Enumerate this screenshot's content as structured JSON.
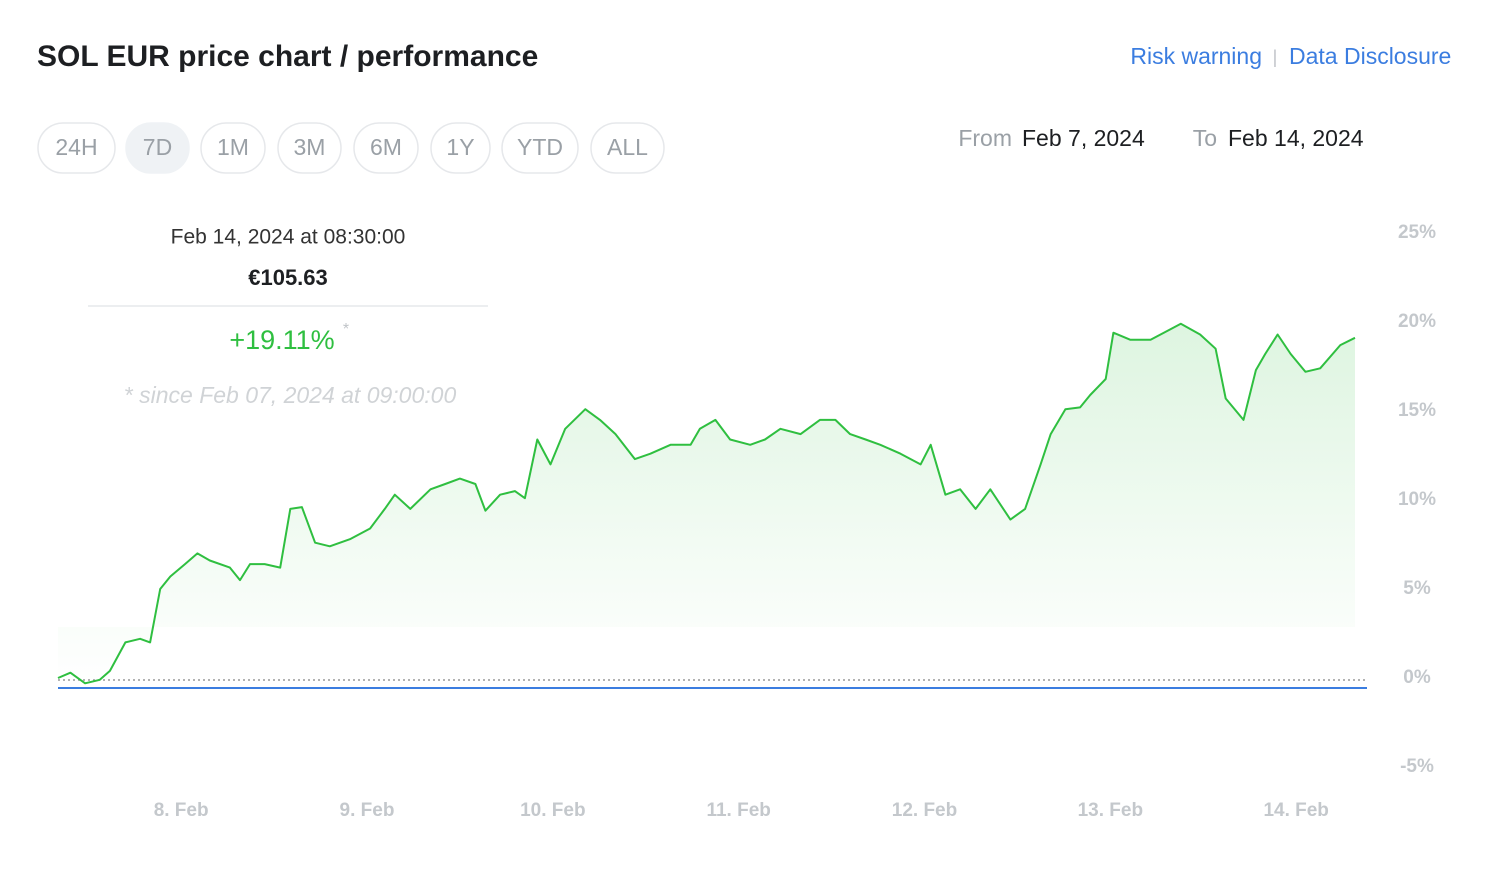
{
  "header": {
    "title": "SOL EUR price chart / performance",
    "links": [
      "Risk warning",
      "Data Disclosure"
    ]
  },
  "ranges": {
    "options": [
      "24H",
      "7D",
      "1M",
      "3M",
      "6M",
      "1Y",
      "YTD",
      "ALL"
    ],
    "selected": "7D"
  },
  "period": {
    "from_label": "From",
    "from": "Feb 7, 2024",
    "to_label": "To",
    "to": "Feb 14, 2024"
  },
  "tooltip": {
    "time": "Feb 14, 2024 at 08:30:00",
    "price": "€105.63",
    "change": "+19.11%",
    "mark": "*",
    "note": "* since Feb 07, 2024 at 09:00:00"
  },
  "chart_data": {
    "type": "line",
    "x": [
      0,
      1.6,
      3.5,
      5.4,
      6.7,
      8.7,
      10.6,
      11.9,
      13.2,
      14.5,
      16.4,
      18.0,
      19.6,
      22.2,
      23.5,
      24.8,
      26.7,
      28.7,
      30.0,
      31.5,
      33.2,
      35.1,
      37.7,
      40.3,
      42.2,
      43.5,
      45.5,
      48.1,
      50.0,
      51.9,
      53.9,
      55.2,
      57.1,
      59.0,
      60.3,
      61.9,
      63.6,
      65.5,
      68.1,
      70.0,
      72.0,
      74.5,
      76.5,
      79.1,
      81.7,
      82.9,
      84.9,
      86.8,
      89.4,
      91.3,
      93.3,
      95.9,
      98.4,
      100.4,
      102.3,
      104.3,
      106.2,
      108.8,
      111.4,
      112.7,
      114.6,
      116.5,
      118.5,
      120.4,
      123.0,
      124.9,
      126.9,
      128.2,
      130.1,
      132.0,
      133.3,
      135.3,
      136.3,
      138.5,
      141.1,
      143.7,
      145.0,
      147.5,
      149.5,
      150.8,
      153.1,
      154.7,
      155.9,
      157.5,
      159.2,
      161.1,
      163.0,
      165.6,
      167.5
    ],
    "series": [
      {
        "name": "SOL EUR",
        "color": "#2fbf40",
        "values": [
          0,
          0.3,
          -0.3,
          -0.1,
          0.4,
          2.0,
          2.2,
          2.0,
          5.0,
          5.7,
          6.4,
          7.0,
          6.6,
          6.2,
          5.5,
          6.4,
          6.4,
          6.2,
          9.5,
          9.6,
          7.6,
          7.4,
          7.8,
          8.4,
          9.5,
          10.3,
          9.5,
          10.6,
          10.9,
          11.2,
          10.9,
          9.4,
          10.3,
          10.5,
          10.1,
          13.4,
          12.0,
          14.0,
          15.1,
          14.5,
          13.7,
          12.3,
          12.6,
          13.1,
          13.1,
          14.0,
          14.5,
          13.4,
          13.1,
          13.4,
          14.0,
          13.7,
          14.5,
          14.5,
          13.7,
          13.4,
          13.1,
          12.6,
          12.0,
          13.1,
          10.3,
          10.6,
          9.5,
          10.6,
          8.9,
          9.5,
          12.0,
          13.7,
          15.1,
          15.2,
          15.9,
          16.8,
          19.4,
          19.0,
          19.0,
          19.6,
          19.9,
          19.3,
          18.5,
          15.7,
          14.5,
          17.3,
          18.2,
          19.3,
          18.2,
          17.2,
          17.4,
          18.7,
          19.11
        ]
      }
    ],
    "xlim": [
      0,
      167.5
    ],
    "xticks": [
      {
        "value": 15,
        "label": "8. Feb"
      },
      {
        "value": 39,
        "label": "9. Feb"
      },
      {
        "value": 63,
        "label": "10. Feb"
      },
      {
        "value": 87,
        "label": "11. Feb"
      },
      {
        "value": 111,
        "label": "12. Feb"
      },
      {
        "value": 135,
        "label": "13. Feb"
      },
      {
        "value": 159,
        "label": "14. Feb"
      }
    ],
    "ylim": [
      -5,
      25
    ],
    "yticks": [
      {
        "value": -5,
        "label": "-5%"
      },
      {
        "value": 0,
        "label": "0%"
      },
      {
        "value": 5,
        "label": "5%"
      },
      {
        "value": 10,
        "label": "10%"
      },
      {
        "value": 15,
        "label": "15%"
      },
      {
        "value": 20,
        "label": "20%"
      },
      {
        "value": 25,
        "label": "25%"
      }
    ],
    "grid": false
  }
}
